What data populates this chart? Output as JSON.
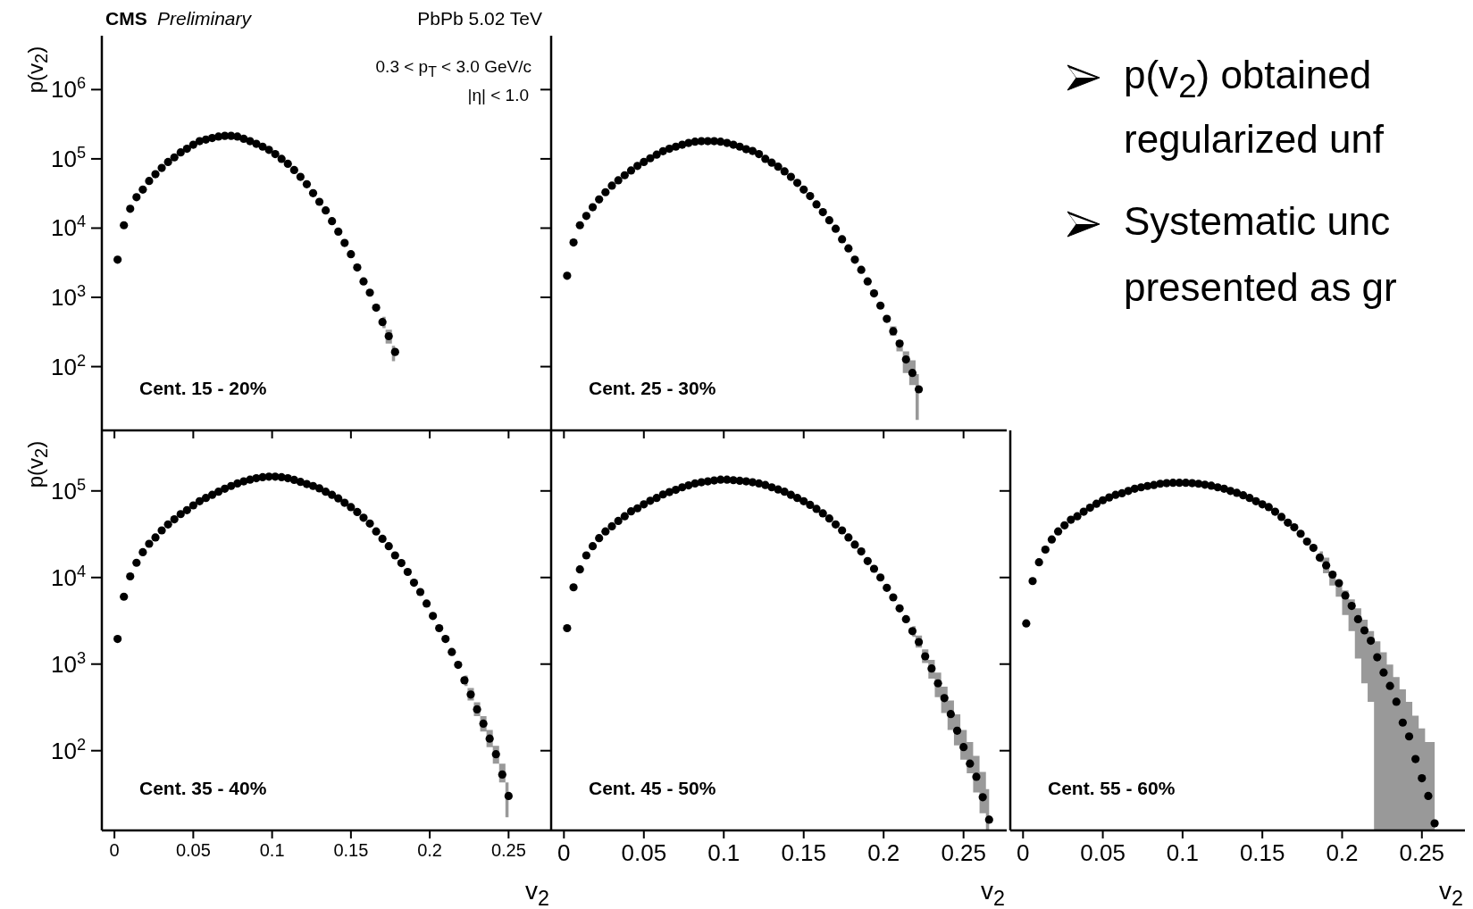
{
  "chart_data": [
    {
      "type": "scatter",
      "ylabel": "p(v$_{2}$)",
      "annotations": [
        "CMS",
        "Preliminary",
        "PbPb 5.02 TeV",
        "0.3 < p$_{T}$ < 3.0 GeV/c",
        "|η| < 1.0",
        "Cent. 15 - 20%"
      ],
      "log": "y",
      "marker": "circle",
      "tick_labels": "y",
      "xlim": [
        -0.008,
        0.277
      ],
      "xticks": [
        0,
        0.05,
        0.1,
        0.15,
        0.2,
        0.25
      ],
      "ylim": [
        12,
        6000000
      ],
      "yticks": [
        {
          "value": 100,
          "label": "10$^{2}$"
        },
        {
          "value": 1000,
          "label": "10$^{3}$"
        },
        {
          "value": 10000,
          "label": "10$^{4}$"
        },
        {
          "value": 100000,
          "label": "10$^{5}$"
        },
        {
          "value": 1000000,
          "label": "10$^{6}$"
        }
      ],
      "x": [
        0.002,
        0.006,
        0.01,
        0.014,
        0.018,
        0.022,
        0.026,
        0.03,
        0.034,
        0.038,
        0.042,
        0.046,
        0.05,
        0.054,
        0.058,
        0.062,
        0.066,
        0.07,
        0.074,
        0.078,
        0.082,
        0.086,
        0.09,
        0.094,
        0.098,
        0.102,
        0.106,
        0.11,
        0.114,
        0.118,
        0.122,
        0.126,
        0.13,
        0.134,
        0.138,
        0.142,
        0.146,
        0.15,
        0.154,
        0.158,
        0.162,
        0.166,
        0.17,
        0.174,
        0.178
      ],
      "series": [
        {
          "color": "#000000",
          "values": [
            3500,
            11000,
            19000,
            28000,
            36000,
            48000,
            60000,
            74000,
            90000,
            105000,
            124000,
            140000,
            160000,
            180000,
            190000,
            200000,
            210000,
            215000,
            215000,
            210000,
            195000,
            180000,
            165000,
            150000,
            135000,
            117000,
            100000,
            85000,
            69000,
            55000,
            43000,
            32000,
            24000,
            18000,
            12600,
            8900,
            6100,
            4200,
            2700,
            1700,
            1170,
            710,
            440,
            275,
            163
          ],
          "lower": [
            null,
            null,
            null,
            null,
            null,
            null,
            null,
            null,
            null,
            null,
            null,
            null,
            null,
            null,
            null,
            null,
            null,
            null,
            null,
            null,
            null,
            null,
            null,
            null,
            null,
            null,
            null,
            null,
            null,
            null,
            null,
            null,
            null,
            null,
            null,
            null,
            null,
            null,
            null,
            null,
            null,
            null,
            360,
            215,
            120
          ],
          "upper": [
            null,
            null,
            null,
            null,
            null,
            null,
            null,
            null,
            null,
            null,
            null,
            null,
            null,
            null,
            null,
            null,
            null,
            null,
            null,
            null,
            null,
            null,
            null,
            null,
            null,
            null,
            null,
            null,
            null,
            null,
            null,
            null,
            null,
            null,
            null,
            null,
            null,
            null,
            null,
            null,
            null,
            null,
            525,
            340,
            200
          ]
        }
      ]
    },
    {
      "type": "scatter",
      "annotations": [
        "Cent. 25 - 30%"
      ],
      "log": "y",
      "marker": "circle",
      "tick_labels": false,
      "xlim": [
        -0.008,
        0.277
      ],
      "xticks": [
        0,
        0.05,
        0.1,
        0.15,
        0.2,
        0.25
      ],
      "ylim": [
        12,
        6000000
      ],
      "yticks": [
        100,
        1000,
        10000,
        100000,
        1000000
      ],
      "x": [
        0.002,
        0.006,
        0.01,
        0.014,
        0.018,
        0.022,
        0.026,
        0.03,
        0.034,
        0.038,
        0.042,
        0.046,
        0.05,
        0.054,
        0.058,
        0.062,
        0.066,
        0.07,
        0.074,
        0.078,
        0.082,
        0.086,
        0.09,
        0.094,
        0.098,
        0.102,
        0.106,
        0.11,
        0.114,
        0.118,
        0.122,
        0.126,
        0.13,
        0.134,
        0.138,
        0.142,
        0.146,
        0.15,
        0.154,
        0.158,
        0.162,
        0.166,
        0.17,
        0.174,
        0.178,
        0.182,
        0.186,
        0.19,
        0.194,
        0.198,
        0.202,
        0.206,
        0.21,
        0.214,
        0.218,
        0.222
      ],
      "series": [
        {
          "color": "#000000",
          "values": [
            2050,
            6200,
            11000,
            15000,
            20000,
            26000,
            33000,
            41000,
            49000,
            58000,
            68000,
            79000,
            90000,
            102000,
            115000,
            129000,
            140000,
            150000,
            160000,
            170000,
            177000,
            180000,
            180000,
            180000,
            177000,
            170000,
            160000,
            150000,
            138000,
            130000,
            117000,
            100000,
            88000,
            77000,
            66000,
            55000,
            45000,
            36000,
            29000,
            22000,
            17000,
            13000,
            9800,
            6900,
            5100,
            3500,
            2500,
            1700,
            1140,
            760,
            490,
            325,
            215,
            127,
            81,
            47
          ],
          "lower": [
            null,
            null,
            null,
            null,
            null,
            null,
            null,
            null,
            null,
            null,
            null,
            null,
            null,
            null,
            null,
            null,
            null,
            null,
            null,
            null,
            null,
            null,
            null,
            null,
            null,
            null,
            null,
            null,
            null,
            null,
            null,
            null,
            null,
            null,
            null,
            null,
            null,
            null,
            null,
            null,
            null,
            null,
            null,
            null,
            null,
            null,
            null,
            null,
            null,
            null,
            440,
            280,
            166,
            81,
            54,
            17
          ],
          "upper": [
            null,
            null,
            null,
            null,
            null,
            null,
            null,
            null,
            null,
            null,
            null,
            null,
            null,
            null,
            null,
            null,
            null,
            null,
            null,
            null,
            null,
            null,
            null,
            null,
            null,
            null,
            null,
            null,
            null,
            null,
            null,
            null,
            null,
            null,
            null,
            null,
            null,
            null,
            null,
            null,
            null,
            null,
            null,
            null,
            null,
            null,
            null,
            null,
            null,
            null,
            540,
            380,
            240,
            166,
            123,
            78
          ]
        }
      ]
    },
    {
      "type": "scatter",
      "ylabel": "p(v$_{2}$)",
      "xlabel": "v$_{2}$",
      "annotations": [
        "Cent. 35 - 40%"
      ],
      "log": "y",
      "marker": "circle",
      "xlim": [
        -0.008,
        0.277
      ],
      "xticks": [
        0,
        0.05,
        0.1,
        0.15,
        0.2,
        0.25
      ],
      "ylim": [
        12,
        500000
      ],
      "yticks": [
        {
          "value": 100,
          "label": "10$^{2}$"
        },
        {
          "value": 1000,
          "label": "10$^{3}$"
        },
        {
          "value": 10000,
          "label": "10$^{4}$"
        },
        {
          "value": 100000,
          "label": "10$^{5}$"
        }
      ],
      "x": [
        0.002,
        0.006,
        0.01,
        0.014,
        0.018,
        0.022,
        0.026,
        0.03,
        0.034,
        0.038,
        0.042,
        0.046,
        0.05,
        0.054,
        0.058,
        0.062,
        0.066,
        0.07,
        0.074,
        0.078,
        0.082,
        0.086,
        0.09,
        0.094,
        0.098,
        0.102,
        0.106,
        0.11,
        0.114,
        0.118,
        0.122,
        0.126,
        0.13,
        0.134,
        0.138,
        0.142,
        0.146,
        0.15,
        0.154,
        0.158,
        0.162,
        0.166,
        0.17,
        0.174,
        0.178,
        0.182,
        0.186,
        0.19,
        0.194,
        0.198,
        0.202,
        0.206,
        0.21,
        0.214,
        0.218,
        0.222,
        0.226,
        0.23,
        0.234,
        0.238,
        0.242,
        0.246,
        0.25
      ],
      "series": [
        {
          "color": "#000000",
          "values": [
            1950,
            6000,
            10300,
            14800,
            19600,
            24500,
            29000,
            35000,
            41000,
            47000,
            54000,
            60000,
            68000,
            76000,
            83000,
            90000,
            98000,
            106000,
            114000,
            122000,
            129000,
            135000,
            140000,
            144000,
            146000,
            146000,
            144000,
            140000,
            134000,
            127000,
            120000,
            114000,
            107000,
            98000,
            90000,
            82000,
            73000,
            65000,
            57000,
            49000,
            42000,
            34000,
            28000,
            23000,
            18000,
            14700,
            11600,
            8700,
            6800,
            5000,
            3600,
            2600,
            1950,
            1380,
            980,
            650,
            445,
            300,
            205,
            138,
            91,
            53,
            30
          ],
          "lower": [
            null,
            null,
            null,
            null,
            null,
            null,
            null,
            null,
            null,
            null,
            null,
            null,
            null,
            null,
            null,
            null,
            null,
            null,
            null,
            null,
            null,
            null,
            null,
            null,
            null,
            null,
            null,
            null,
            null,
            null,
            null,
            null,
            null,
            null,
            null,
            null,
            null,
            null,
            null,
            null,
            null,
            null,
            null,
            null,
            null,
            null,
            null,
            null,
            null,
            null,
            null,
            null,
            null,
            null,
            null,
            560,
            380,
            251,
            166,
            110,
            71,
            43,
            17
          ],
          "upper": [
            null,
            null,
            null,
            null,
            null,
            null,
            null,
            null,
            null,
            null,
            null,
            null,
            null,
            null,
            null,
            null,
            null,
            null,
            null,
            null,
            null,
            null,
            null,
            null,
            null,
            null,
            null,
            null,
            null,
            null,
            null,
            null,
            null,
            null,
            null,
            null,
            null,
            null,
            null,
            null,
            null,
            null,
            null,
            null,
            null,
            null,
            null,
            null,
            null,
            null,
            null,
            null,
            null,
            null,
            null,
            740,
            530,
            363,
            251,
            174,
            114,
            71,
            43
          ]
        }
      ]
    },
    {
      "type": "scatter",
      "xlabel": "v$_{2}$",
      "annotations": [
        "Cent. 45 - 50%"
      ],
      "log": "y",
      "marker": "circle",
      "tick_labels": "x",
      "xlim": [
        -0.008,
        0.277
      ],
      "xticks": [
        0,
        0.05,
        0.1,
        0.15,
        0.2,
        0.25
      ],
      "ylim": [
        12,
        500000
      ],
      "yticks": [
        100,
        1000,
        10000,
        100000
      ],
      "x": [
        0.002,
        0.006,
        0.01,
        0.014,
        0.018,
        0.022,
        0.026,
        0.03,
        0.034,
        0.038,
        0.042,
        0.046,
        0.05,
        0.054,
        0.058,
        0.062,
        0.066,
        0.07,
        0.074,
        0.078,
        0.082,
        0.086,
        0.09,
        0.094,
        0.098,
        0.102,
        0.106,
        0.11,
        0.114,
        0.118,
        0.122,
        0.126,
        0.13,
        0.134,
        0.138,
        0.142,
        0.146,
        0.15,
        0.154,
        0.158,
        0.162,
        0.166,
        0.17,
        0.174,
        0.178,
        0.182,
        0.186,
        0.19,
        0.194,
        0.198,
        0.202,
        0.206,
        0.21,
        0.214,
        0.218,
        0.222,
        0.226,
        0.23,
        0.234,
        0.238,
        0.242,
        0.246,
        0.25,
        0.254,
        0.258,
        0.262,
        0.266
      ],
      "series": [
        {
          "color": "#000000",
          "values": [
            2600,
            7700,
            12400,
            18000,
            23000,
            28500,
            34000,
            39000,
            45000,
            51000,
            58000,
            63000,
            70000,
            77000,
            83000,
            91000,
            97000,
            103000,
            110000,
            116000,
            122000,
            126000,
            129000,
            132000,
            135000,
            135000,
            133000,
            131000,
            129000,
            126000,
            122000,
            117000,
            110000,
            104000,
            98000,
            90000,
            83000,
            76000,
            69000,
            62000,
            55000,
            48000,
            41000,
            35000,
            29000,
            24000,
            20000,
            15500,
            12600,
            10000,
            7600,
            5900,
            4400,
            3300,
            2400,
            1800,
            1230,
            890,
            600,
            405,
            265,
            170,
            110,
            71,
            50,
            29,
            16
          ],
          "lower": [
            null,
            null,
            null,
            null,
            null,
            null,
            null,
            null,
            null,
            null,
            null,
            null,
            null,
            null,
            null,
            null,
            null,
            null,
            null,
            null,
            null,
            null,
            null,
            null,
            null,
            null,
            null,
            null,
            null,
            null,
            null,
            null,
            null,
            null,
            null,
            null,
            null,
            null,
            null,
            null,
            null,
            null,
            null,
            null,
            null,
            null,
            null,
            null,
            null,
            null,
            null,
            null,
            null,
            null,
            2060,
            1550,
            1030,
            680,
            415,
            272,
            174,
            115,
            79,
            55,
            33,
            19,
            12
          ],
          "upper": [
            null,
            null,
            null,
            null,
            null,
            null,
            null,
            null,
            null,
            null,
            null,
            null,
            null,
            null,
            null,
            null,
            null,
            null,
            null,
            null,
            null,
            null,
            null,
            null,
            null,
            null,
            null,
            null,
            null,
            null,
            null,
            null,
            null,
            null,
            null,
            null,
            null,
            null,
            null,
            null,
            null,
            null,
            null,
            null,
            null,
            null,
            null,
            null,
            null,
            null,
            null,
            null,
            null,
            null,
            2750,
            2140,
            1480,
            1120,
            800,
            550,
            380,
            263,
            174,
            126,
            87,
            57,
            36
          ]
        }
      ]
    },
    {
      "type": "scatter",
      "xlabel": "v$_{2}$",
      "annotations": [
        "Cent. 55 - 60%"
      ],
      "log": "y",
      "marker": "circle",
      "tick_labels": "x",
      "xlim": [
        -0.008,
        0.277
      ],
      "xticks": [
        0,
        0.05,
        0.1,
        0.15,
        0.2,
        0.25
      ],
      "ylim": [
        12,
        500000
      ],
      "yticks": [
        100,
        1000,
        10000,
        100000
      ],
      "x": [
        0.002,
        0.006,
        0.01,
        0.014,
        0.018,
        0.022,
        0.026,
        0.03,
        0.034,
        0.038,
        0.042,
        0.046,
        0.05,
        0.054,
        0.058,
        0.062,
        0.066,
        0.07,
        0.074,
        0.078,
        0.082,
        0.086,
        0.09,
        0.094,
        0.098,
        0.102,
        0.106,
        0.11,
        0.114,
        0.118,
        0.122,
        0.126,
        0.13,
        0.134,
        0.138,
        0.142,
        0.146,
        0.15,
        0.154,
        0.158,
        0.162,
        0.166,
        0.17,
        0.174,
        0.178,
        0.182,
        0.186,
        0.19,
        0.194,
        0.198,
        0.202,
        0.206,
        0.21,
        0.214,
        0.218,
        0.222,
        0.226,
        0.23,
        0.234,
        0.238,
        0.242,
        0.246,
        0.25,
        0.254,
        0.258
      ],
      "series": [
        {
          "color": "#000000",
          "values": [
            2950,
            9100,
            15000,
            21000,
            27500,
            34000,
            40000,
            46500,
            51000,
            57500,
            64000,
            71000,
            78000,
            84000,
            90000,
            94000,
            100000,
            106000,
            110000,
            114000,
            117000,
            121000,
            123000,
            124000,
            124000,
            124000,
            123000,
            121000,
            118000,
            115000,
            110000,
            106000,
            100000,
            95000,
            89000,
            83000,
            76000,
            70000,
            65000,
            57500,
            50000,
            43000,
            38000,
            32000,
            26000,
            22000,
            17000,
            13800,
            10800,
            8600,
            6200,
            4700,
            3300,
            2450,
            1860,
            1200,
            800,
            560,
            367,
            211,
            146,
            80,
            48,
            30,
            14.5
          ],
          "lower": [
            null,
            null,
            null,
            null,
            null,
            null,
            null,
            null,
            null,
            null,
            null,
            null,
            null,
            null,
            null,
            null,
            null,
            null,
            null,
            null,
            null,
            null,
            null,
            null,
            null,
            null,
            null,
            null,
            null,
            null,
            null,
            null,
            null,
            null,
            null,
            null,
            null,
            null,
            null,
            null,
            null,
            null,
            null,
            null,
            null,
            null,
            15000,
            11200,
            8100,
            6000,
            3700,
            2400,
            1160,
            600,
            366,
            12,
            12,
            12,
            12,
            12,
            12,
            12,
            12,
            12,
            12
          ],
          "upper": [
            null,
            null,
            null,
            null,
            null,
            null,
            null,
            null,
            null,
            null,
            null,
            null,
            null,
            null,
            null,
            null,
            null,
            null,
            null,
            null,
            null,
            null,
            null,
            null,
            null,
            null,
            null,
            null,
            null,
            null,
            null,
            null,
            null,
            null,
            null,
            null,
            null,
            null,
            null,
            null,
            null,
            null,
            null,
            null,
            null,
            null,
            20000,
            17000,
            11700,
            8700,
            7100,
            5600,
            4400,
            3250,
            2400,
            1830,
            1370,
            990,
            710,
            510,
            366,
            253,
            181,
            126,
            126
          ]
        }
      ]
    },
    {
      "type": "other",
      "annotations": [
        "p(v$_{2}$) obtained",
        "regularized unf",
        "Systematic unc",
        "presented as gr"
      ]
    }
  ]
}
